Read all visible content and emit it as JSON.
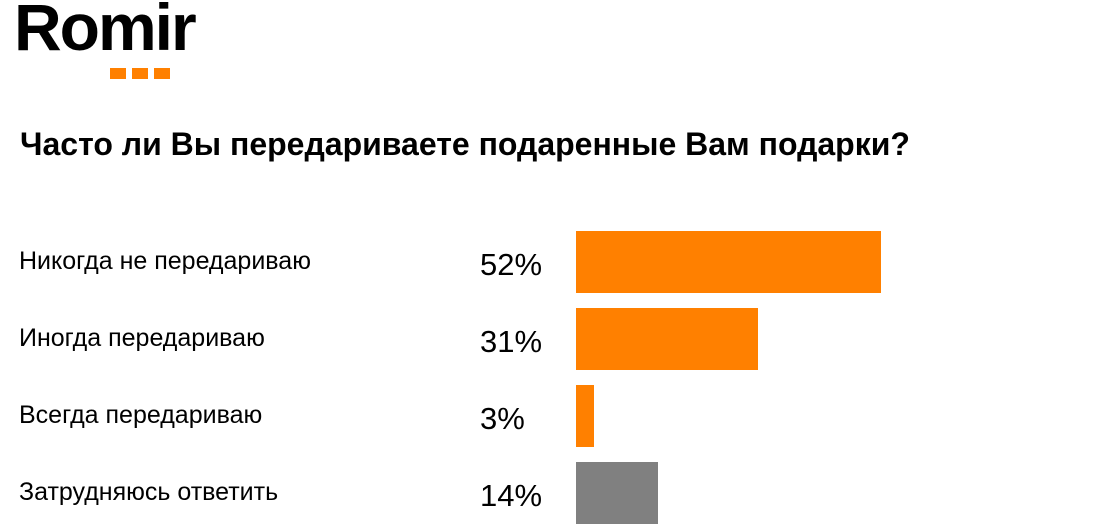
{
  "logo": {
    "text": "Romir",
    "accent_color": "#ff8000"
  },
  "question": "Часто ли Вы передариваете подаренные Вам подарки?",
  "chart_data": {
    "type": "bar",
    "orientation": "horizontal",
    "title": "Часто ли Вы передариваете подаренные Вам подарки?",
    "categories": [
      "Никогда не передариваю",
      "Иногда передариваю",
      "Всегда передариваю",
      "Затрудняюсь ответить"
    ],
    "values": [
      52,
      31,
      3,
      14
    ],
    "value_labels": [
      "52%",
      "31%",
      "3%",
      "14%"
    ],
    "colors": [
      "#ff8000",
      "#ff8000",
      "#ff8000",
      "#808080"
    ],
    "unit": "%",
    "xlabel": "",
    "ylabel": "",
    "grid": false,
    "legend": false
  }
}
